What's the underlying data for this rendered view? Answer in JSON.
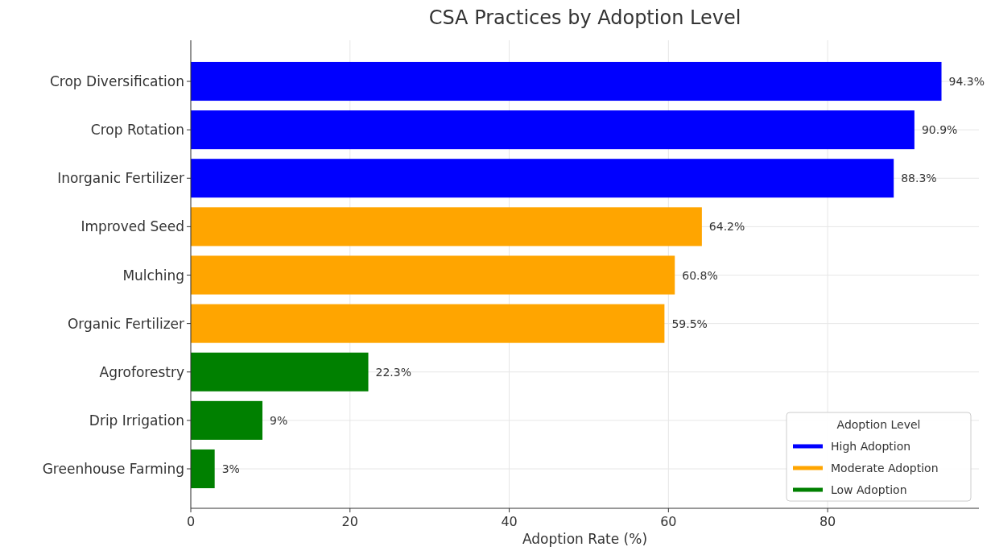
{
  "chart_data": {
    "type": "bar",
    "orientation": "horizontal",
    "title": "CSA Practices by Adoption Level",
    "xlabel": "Adoption Rate (%)",
    "legend_title": "Adoption Level",
    "categories": [
      "Crop Diversification",
      "Crop Rotation",
      "Inorganic Fertilizer",
      "Improved Seed",
      "Mulching",
      "Organic Fertilizer",
      "Agroforestry",
      "Drip Irrigation",
      "Greenhouse Farming"
    ],
    "series": [
      {
        "name": "High Adoption",
        "color": "#0000ff",
        "values": [
          94.3,
          90.9,
          88.3,
          null,
          null,
          null,
          null,
          null,
          null
        ],
        "value_labels": [
          "94.3%",
          "90.9%",
          "88.3%",
          null,
          null,
          null,
          null,
          null,
          null
        ]
      },
      {
        "name": "Moderate Adoption",
        "color": "#ffa500",
        "values": [
          null,
          null,
          null,
          64.2,
          60.8,
          59.5,
          null,
          null,
          null
        ],
        "value_labels": [
          null,
          null,
          null,
          "64.2%",
          "60.8%",
          "59.5%",
          null,
          null,
          null
        ]
      },
      {
        "name": "Low Adoption",
        "color": "#008000",
        "values": [
          null,
          null,
          null,
          null,
          null,
          null,
          22.3,
          9,
          3
        ],
        "value_labels": [
          null,
          null,
          null,
          null,
          null,
          null,
          "22.3%",
          "9%",
          "3%"
        ]
      }
    ],
    "xlim": [
      0,
      99
    ],
    "xticks": [
      0,
      20,
      40,
      60,
      80
    ],
    "grid": true,
    "legend": "bottom right"
  }
}
